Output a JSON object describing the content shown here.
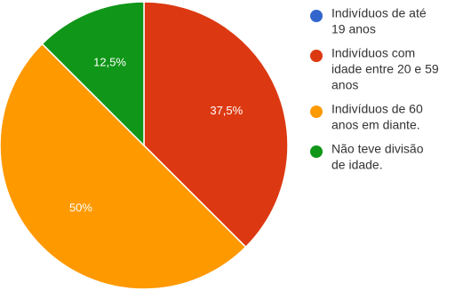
{
  "chart_data": {
    "type": "pie",
    "slices": [
      {
        "label": "Indivíduos de até 19 anos",
        "legend_lines": [
          "Indivíduos de até",
          "19 anos"
        ],
        "value": 0,
        "value_label": "",
        "color": "#3366cc"
      },
      {
        "label": "Indivíduos com idade entre 20 e 59 anos",
        "legend_lines": [
          "Indivíduos com",
          "idade entre 20 e 59",
          "anos"
        ],
        "value": 37.5,
        "value_label": "37,5%",
        "color": "#dc3912"
      },
      {
        "label": "Indivíduos de 60 anos em diante.",
        "legend_lines": [
          "Indivíduos de 60",
          "anos em diante."
        ],
        "value": 50,
        "value_label": "50%",
        "color": "#ff9900"
      },
      {
        "label": "Não teve divisão de idade.",
        "legend_lines": [
          "Não teve divisão",
          "de idade."
        ],
        "value": 12.5,
        "value_label": "12,5%",
        "color": "#109618"
      }
    ],
    "legend_position": "right",
    "start_angle_deg": 90,
    "direction": "clockwise"
  }
}
